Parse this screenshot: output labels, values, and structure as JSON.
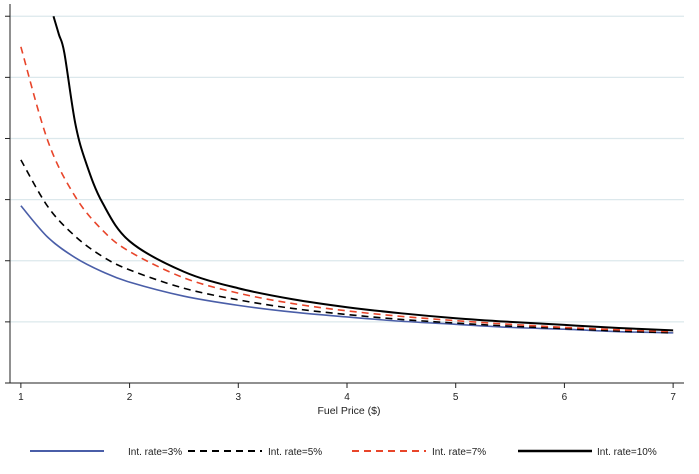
{
  "chart_data": {
    "type": "line",
    "xlabel": "Fuel Price ($)",
    "ylabel": "",
    "xlim": [
      0.9,
      7.1
    ],
    "ylim": [
      0,
      6.2
    ],
    "xticks": [
      1,
      2,
      3,
      4,
      5,
      6,
      7
    ],
    "xtick_labels": [
      "1",
      "2",
      "3",
      "4",
      "5",
      "6",
      "7"
    ],
    "yticks": [
      0,
      1,
      2,
      3,
      4,
      5,
      6
    ],
    "ytick_labels": [
      "",
      "",
      "",
      "",
      "",
      "",
      ""
    ],
    "grid": "horizontal",
    "legend_position": "bottom",
    "x": [
      1,
      1.25,
      1.5,
      1.75,
      2,
      2.5,
      3,
      3.5,
      4,
      4.5,
      5,
      5.5,
      6,
      6.5,
      7
    ],
    "series": [
      {
        "name": "Int. rate=3%",
        "color": "#4a5ea8",
        "dash": "solid",
        "stroke_weight": "normal",
        "values": [
          2.9,
          2.38,
          2.05,
          1.82,
          1.65,
          1.42,
          1.27,
          1.16,
          1.08,
          1.01,
          0.96,
          0.91,
          0.88,
          0.84,
          0.82
        ]
      },
      {
        "name": "Int. rate=5%",
        "color": "#000000",
        "dash": "dashed",
        "stroke_weight": "normal",
        "values": [
          3.65,
          2.88,
          2.4,
          2.07,
          1.85,
          1.55,
          1.36,
          1.22,
          1.12,
          1.04,
          0.98,
          0.93,
          0.89,
          0.85,
          0.82
        ]
      },
      {
        "name": "Int. rate=7%",
        "color": "#e8452a",
        "dash": "dashed",
        "stroke_weight": "normal",
        "values": [
          5.5,
          3.95,
          3.05,
          2.5,
          2.15,
          1.72,
          1.47,
          1.3,
          1.18,
          1.09,
          1.02,
          0.96,
          0.91,
          0.87,
          0.84
        ]
      },
      {
        "name": "Int. rate=10%",
        "color": "#000000",
        "dash": "solid",
        "stroke_weight": "heavy",
        "x": [
          1.3,
          1.35,
          1.4,
          1.5,
          1.6,
          1.75,
          2,
          2.5,
          3,
          3.5,
          4,
          4.5,
          5,
          5.5,
          6,
          6.5,
          7
        ],
        "values": [
          6.0,
          5.7,
          5.4,
          4.25,
          3.6,
          2.95,
          2.32,
          1.82,
          1.55,
          1.37,
          1.24,
          1.14,
          1.06,
          1.0,
          0.95,
          0.9,
          0.86
        ]
      }
    ]
  }
}
